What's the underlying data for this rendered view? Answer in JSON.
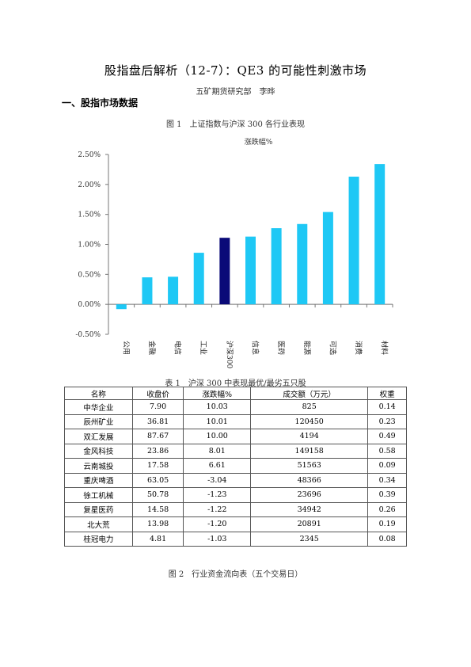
{
  "doc": {
    "title": "股指盘后解析（12-7）：QE3 的可能性刺激市场",
    "author": "五矿期货研究部　李晔",
    "section_heading": "一、股指市场数据",
    "figure1_caption": "图 1　上证指数与沪深 300 各行业表现",
    "table1_caption": "表 1　沪深 300 中表现最优/最劣五只股",
    "figure2_caption": "图 2　行业资金流向表（五个交易日）"
  },
  "chart_data": {
    "type": "bar",
    "title": "涨跌幅%",
    "categories": [
      "公用",
      "金融",
      "电信",
      "工业",
      "沪深300",
      "信息",
      "医药",
      "能源",
      "可选",
      "消费",
      "材料"
    ],
    "values": [
      -0.08,
      0.45,
      0.46,
      0.86,
      1.11,
      1.13,
      1.27,
      1.34,
      1.54,
      2.13,
      2.34
    ],
    "ylim": [
      -0.5,
      2.5
    ],
    "yticks": [
      "2.50%",
      "2.00%",
      "1.50%",
      "1.00%",
      "0.50%",
      "0.00%",
      "-0.50%"
    ],
    "ytick_values": [
      2.5,
      2.0,
      1.5,
      1.0,
      0.5,
      0.0,
      -0.5
    ],
    "colors": {
      "default": "#1ec8f5",
      "highlight": "#0a0a78"
    },
    "highlight_category": "沪深300",
    "grid": false,
    "legend": "none"
  },
  "table1": {
    "headers": [
      "名称",
      "收盘价",
      "涨跌幅%",
      "成交额（万元）",
      "权重"
    ],
    "rows": [
      [
        "中华企业",
        "7.90",
        "10.03",
        "825",
        "0.14"
      ],
      [
        "辰州矿业",
        "36.81",
        "10.01",
        "120450",
        "0.23"
      ],
      [
        "双汇发展",
        "87.67",
        "10.00",
        "4194",
        "0.49"
      ],
      [
        "金风科技",
        "23.86",
        "8.01",
        "149158",
        "0.58"
      ],
      [
        "云南城投",
        "17.58",
        "6.61",
        "51563",
        "0.09"
      ],
      [
        "重庆啤酒",
        "63.05",
        "-3.04",
        "48366",
        "0.34"
      ],
      [
        "徐工机械",
        "50.78",
        "-1.23",
        "23696",
        "0.39"
      ],
      [
        "复星医药",
        "14.58",
        "-1.22",
        "34942",
        "0.26"
      ],
      [
        "北大荒",
        "13.98",
        "-1.20",
        "20891",
        "0.19"
      ],
      [
        "桂冠电力",
        "4.81",
        "-1.03",
        "2345",
        "0.08"
      ]
    ]
  }
}
